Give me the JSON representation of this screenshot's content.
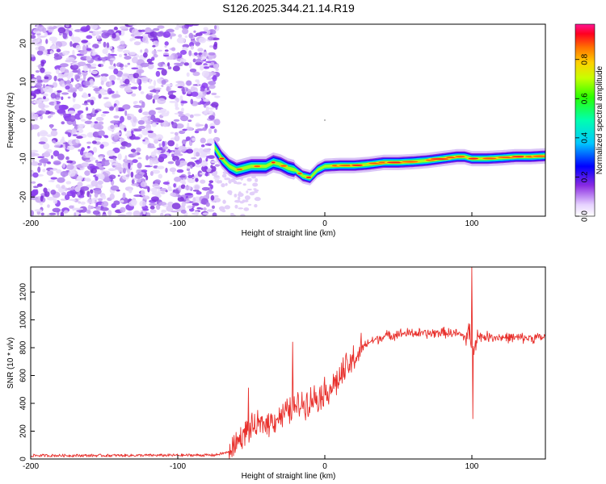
{
  "title": "S126.2025.344.21.14.R19",
  "chart_data": [
    {
      "type": "heatmap",
      "xlabel": "Height of straight line (km)",
      "ylabel": "Frequency (Hz)",
      "xlim": [
        -200,
        150
      ],
      "ylim": [
        -25,
        25
      ],
      "x_ticks": [
        -200,
        -100,
        0,
        100
      ],
      "y_ticks": [
        -20,
        -10,
        0,
        10,
        20
      ],
      "colorbar": {
        "label": "Normalized spectral amplitude",
        "range": [
          0,
          0.98
        ],
        "ticks": [
          0.0,
          0.2,
          0.4,
          0.6,
          0.8
        ],
        "tick_labels": [
          "0.0",
          "0.2",
          "0.4",
          "0.6",
          "0.8"
        ]
      },
      "noise_region_x": [
        -200,
        -73
      ],
      "signal_ridge": {
        "x": [
          -75,
          -70,
          -65,
          -60,
          -55,
          -50,
          -45,
          -40,
          -35,
          -30,
          -25,
          -20,
          -15,
          -10,
          -5,
          0,
          10,
          20,
          30,
          40,
          50,
          60,
          70,
          80,
          90,
          95,
          100,
          110,
          120,
          130,
          140,
          150
        ],
        "frequency": [
          -7,
          -10,
          -12,
          -13,
          -12.5,
          -12,
          -12,
          -12,
          -11,
          -11.5,
          -12.5,
          -13,
          -14.5,
          -15,
          -13,
          -12,
          -11.8,
          -11.8,
          -11.5,
          -11,
          -11,
          -10.8,
          -10.5,
          -10,
          -9.5,
          -9.5,
          -10,
          -10,
          -9.8,
          -9.5,
          -9.5,
          -9.3
        ]
      }
    },
    {
      "type": "line",
      "xlabel": "Height of straight line (km)",
      "ylabel": "SNR (10 * v/v)",
      "xlim": [
        -200,
        150
      ],
      "ylim": [
        0,
        1380
      ],
      "x_ticks": [
        -200,
        -100,
        0,
        100
      ],
      "y_ticks": [
        0,
        200,
        400,
        600,
        800,
        1000,
        1200
      ],
      "series": [
        {
          "name": "SNR",
          "color": "#e8302c",
          "x": [
            -200,
            -150,
            -100,
            -75,
            -65,
            -60,
            -55,
            -50,
            -45,
            -40,
            -35,
            -30,
            -25,
            -20,
            -15,
            -10,
            -5,
            0,
            5,
            10,
            15,
            20,
            25,
            30,
            40,
            50,
            60,
            70,
            80,
            90,
            95,
            100,
            105,
            110,
            120,
            130,
            140,
            150
          ],
          "values": [
            25,
            25,
            27,
            28,
            50,
            120,
            180,
            220,
            240,
            260,
            280,
            310,
            340,
            370,
            400,
            420,
            450,
            480,
            520,
            580,
            650,
            720,
            790,
            840,
            880,
            900,
            905,
            900,
            910,
            900,
            880,
            860,
            880,
            880,
            875,
            870,
            870,
            875
          ]
        }
      ],
      "spikes": [
        {
          "x": -52,
          "value": 510
        },
        {
          "x": -22,
          "value": 840
        },
        {
          "x": 100,
          "value": 1380
        },
        {
          "x": 100.7,
          "value": 290
        }
      ]
    }
  ]
}
